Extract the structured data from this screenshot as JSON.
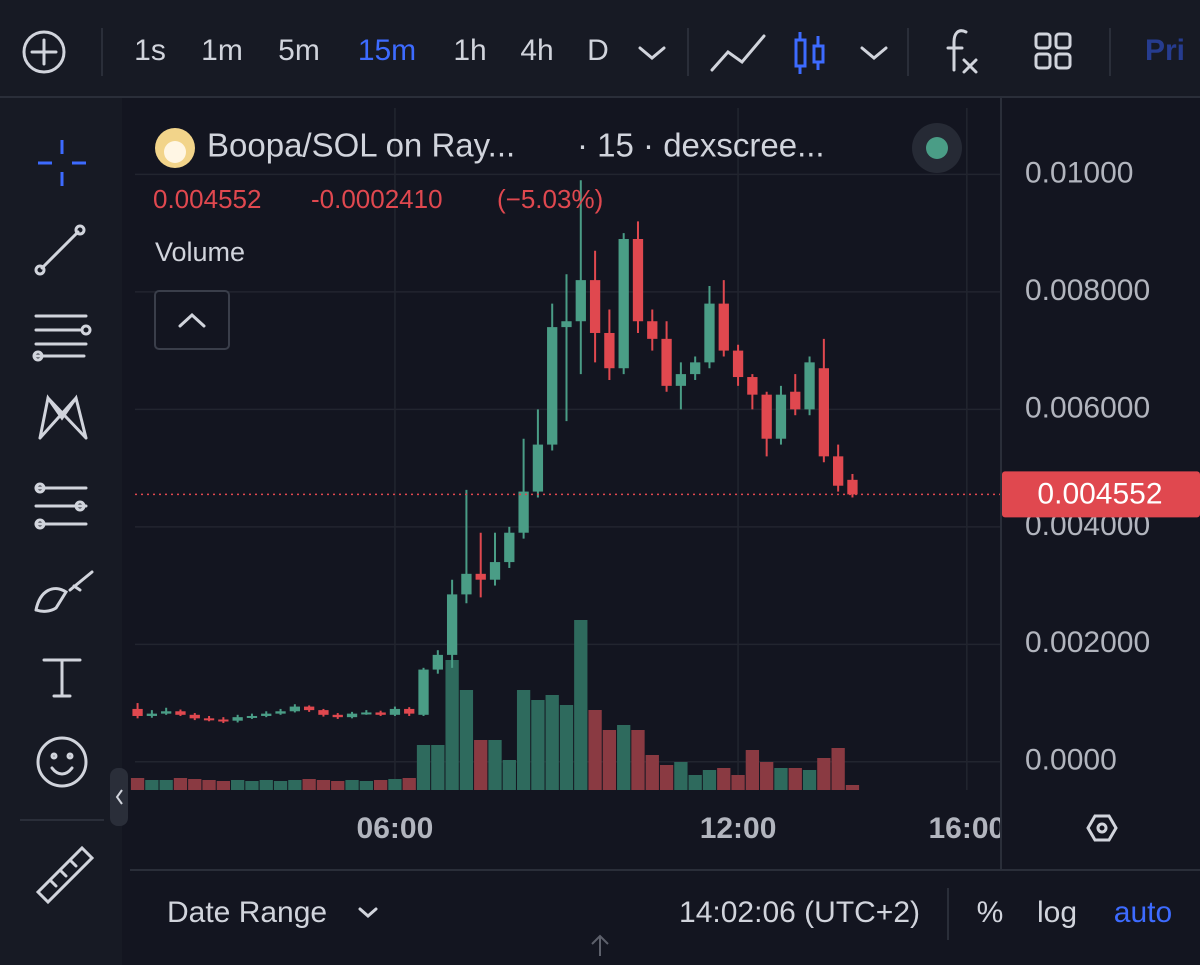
{
  "toolbar": {
    "intervals": [
      "1s",
      "1m",
      "5m",
      "15m",
      "1h",
      "4h",
      "D"
    ],
    "active_interval": "15m",
    "cut_label": "Pri"
  },
  "header": {
    "pair": "Boopa/SOL on Ray...",
    "source": "· 15 · dexscree...",
    "change": "-0.0002410",
    "change_pct": "(−5.03%)",
    "volume_label": "Volume"
  },
  "footer": {
    "date_range": "Date Range",
    "clock": "14:02:06 (UTC+2)",
    "percent": "%",
    "log": "log",
    "auto": "auto"
  },
  "chart_data": {
    "type": "candlestick",
    "last_price": 0.004552,
    "x": [
      1.5,
      1.75,
      2,
      2.25,
      2.5,
      2.75,
      3,
      3.25,
      3.5,
      3.75,
      4,
      4.25,
      4.5,
      4.75,
      5,
      5.25,
      5.5,
      5.75,
      6,
      6.25,
      6.5,
      6.75,
      7,
      7.25,
      7.5,
      7.75,
      8,
      8.25,
      8.5,
      8.75,
      9,
      9.25,
      9.5,
      9.75,
      10,
      10.25,
      10.5,
      10.75,
      11,
      11.25,
      11.5,
      11.75,
      12,
      12.25,
      12.5,
      12.75,
      13,
      13.25,
      13.5,
      13.75,
      14
    ],
    "open": [
      0.0009,
      0.00078,
      0.00082,
      0.00086,
      0.0008,
      0.00074,
      0.00072,
      0.0007,
      0.00076,
      0.00078,
      0.00082,
      0.00086,
      0.00094,
      0.00088,
      0.0008,
      0.00076,
      0.00082,
      0.00084,
      0.0008,
      0.0009,
      0.0008,
      0.00157,
      0.00182,
      0.00285,
      0.0032,
      0.0031,
      0.0034,
      0.0039,
      0.0046,
      0.0054,
      0.0074,
      0.0075,
      0.0082,
      0.0073,
      0.0067,
      0.0089,
      0.0075,
      0.0072,
      0.0064,
      0.0066,
      0.0068,
      0.0078,
      0.007,
      0.00655,
      0.00625,
      0.0055,
      0.0063,
      0.006,
      0.0067,
      0.0052,
      0.0048
    ],
    "high": [
      0.001,
      0.00088,
      0.00092,
      0.00089,
      0.00083,
      0.00078,
      0.00076,
      0.0008,
      0.00082,
      0.00086,
      0.0009,
      0.00098,
      0.00096,
      0.0009,
      0.00083,
      0.00085,
      0.00088,
      0.00087,
      0.00094,
      0.00093,
      0.0016,
      0.0019,
      0.0031,
      0.00463,
      0.0039,
      0.0039,
      0.004,
      0.0055,
      0.006,
      0.0078,
      0.0083,
      0.0099,
      0.0087,
      0.0077,
      0.009,
      0.0092,
      0.0077,
      0.0075,
      0.0068,
      0.0069,
      0.0081,
      0.0082,
      0.0071,
      0.0066,
      0.0063,
      0.0064,
      0.0066,
      0.0069,
      0.0072,
      0.0054,
      0.0049
    ],
    "low": [
      0.00074,
      0.00075,
      0.0008,
      0.00078,
      0.00071,
      0.00069,
      0.00066,
      0.00067,
      0.00073,
      0.00076,
      0.0008,
      0.00084,
      0.00085,
      0.00077,
      0.00073,
      0.00074,
      0.0008,
      0.00078,
      0.00078,
      0.00078,
      0.00078,
      0.0015,
      0.0016,
      0.0027,
      0.0028,
      0.003,
      0.0033,
      0.0038,
      0.0045,
      0.0053,
      0.0058,
      0.0066,
      0.0068,
      0.0065,
      0.0066,
      0.0073,
      0.007,
      0.0063,
      0.006,
      0.0065,
      0.0067,
      0.0069,
      0.0064,
      0.006,
      0.0052,
      0.0054,
      0.0059,
      0.0059,
      0.0051,
      0.0046,
      0.0045
    ],
    "close": [
      0.00078,
      0.00082,
      0.00086,
      0.0008,
      0.00074,
      0.00072,
      0.0007,
      0.00076,
      0.00078,
      0.00082,
      0.00086,
      0.00094,
      0.00088,
      0.0008,
      0.00076,
      0.00082,
      0.00084,
      0.0008,
      0.0009,
      0.00082,
      0.00157,
      0.00182,
      0.00285,
      0.0032,
      0.0031,
      0.0034,
      0.0039,
      0.0046,
      0.0054,
      0.0074,
      0.0075,
      0.0082,
      0.0073,
      0.0067,
      0.0089,
      0.0075,
      0.0072,
      0.0064,
      0.0066,
      0.0068,
      0.0078,
      0.007,
      0.00655,
      0.00625,
      0.0055,
      0.00625,
      0.006,
      0.0068,
      0.0052,
      0.0047,
      0.004552
    ],
    "volume": [
      12,
      10,
      10,
      12,
      11,
      10,
      9,
      10,
      9,
      10,
      9,
      10,
      11,
      10,
      9,
      10,
      9,
      10,
      11,
      12,
      45,
      45,
      130,
      100,
      50,
      50,
      30,
      100,
      90,
      95,
      85,
      170,
      80,
      60,
      65,
      60,
      35,
      25,
      28,
      15,
      20,
      22,
      15,
      40,
      28,
      22,
      22,
      20,
      32,
      42,
      5
    ],
    "up_color": "#4a9d86",
    "down_color": "#e0484f",
    "up_volume_color": "#2e6a5d",
    "down_volume_color": "#8a3a42",
    "xlim": [
      1.455,
      16.58
    ],
    "xticks": [
      {
        "value": 6,
        "label": "06:00"
      },
      {
        "value": 12,
        "label": "12:00"
      },
      {
        "value": 16,
        "label": "16:00"
      }
    ],
    "ylim": [
      -0.00048,
      0.01113
    ],
    "yticks": [
      {
        "value": 0,
        "label": "0.0000"
      },
      {
        "value": 0.002,
        "label": "0.002000"
      },
      {
        "value": 0.004,
        "label": "0.004000"
      },
      {
        "value": 0.006,
        "label": "0.006000"
      },
      {
        "value": 0.008,
        "label": "0.008000"
      },
      {
        "value": 0.01,
        "label": "0.01000"
      }
    ],
    "grid": true
  }
}
